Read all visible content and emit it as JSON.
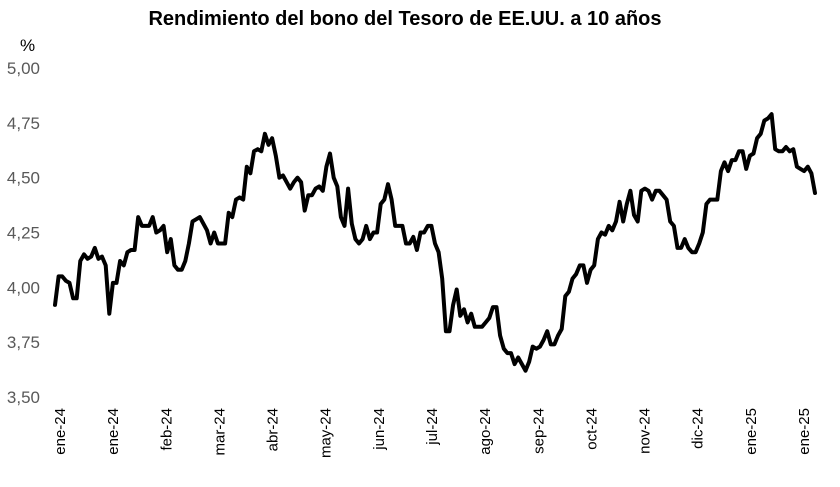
{
  "chart_data": {
    "type": "line",
    "title": "Rendimiento del bono del Tesoro de EE.UU. a 10 años",
    "ylabel": "%",
    "xlabel": "",
    "ylim": [
      3.5,
      5.0
    ],
    "yticks": [
      "3,50",
      "3,75",
      "4,00",
      "4,25",
      "4,50",
      "4,75",
      "5,00"
    ],
    "ytick_values": [
      3.5,
      3.75,
      4.0,
      4.25,
      4.5,
      4.75,
      5.0
    ],
    "xticks": [
      "ene-24",
      "ene-24",
      "feb-24",
      "mar-24",
      "abr-24",
      "may-24",
      "jun-24",
      "jul-24",
      "ago-24",
      "sep-24",
      "oct-24",
      "nov-24",
      "dic-24",
      "ene-25",
      "ene-25"
    ],
    "grid": false,
    "legend": "none",
    "line_color": "#000000",
    "series": [
      {
        "values": [
          3.92,
          4.05,
          4.05,
          4.03,
          4.02,
          3.95,
          3.95,
          4.12,
          4.15,
          4.13,
          4.14,
          4.18,
          4.13,
          4.14,
          4.1,
          3.88,
          4.02,
          4.02,
          4.12,
          4.1,
          4.16,
          4.17,
          4.17,
          4.32,
          4.28,
          4.28,
          4.28,
          4.32,
          4.25,
          4.26,
          4.28,
          4.16,
          4.22,
          4.1,
          4.08,
          4.08,
          4.12,
          4.2,
          4.3,
          4.31,
          4.32,
          4.29,
          4.26,
          4.2,
          4.25,
          4.2,
          4.2,
          4.2,
          4.34,
          4.32,
          4.4,
          4.41,
          4.4,
          4.55,
          4.52,
          4.62,
          4.63,
          4.62,
          4.7,
          4.65,
          4.68,
          4.6,
          4.5,
          4.51,
          4.48,
          4.45,
          4.48,
          4.5,
          4.48,
          4.35,
          4.42,
          4.42,
          4.45,
          4.46,
          4.44,
          4.55,
          4.61,
          4.5,
          4.46,
          4.32,
          4.28,
          4.45,
          4.29,
          4.22,
          4.2,
          4.22,
          4.28,
          4.22,
          4.25,
          4.25,
          4.38,
          4.4,
          4.47,
          4.4,
          4.28,
          4.28,
          4.28,
          4.2,
          4.2,
          4.23,
          4.17,
          4.25,
          4.25,
          4.28,
          4.28,
          4.2,
          4.16,
          4.04,
          3.8,
          3.8,
          3.92,
          3.99,
          3.87,
          3.9,
          3.84,
          3.88,
          3.82,
          3.82,
          3.82,
          3.84,
          3.86,
          3.91,
          3.91,
          3.78,
          3.72,
          3.7,
          3.7,
          3.65,
          3.68,
          3.65,
          3.62,
          3.66,
          3.73,
          3.72,
          3.73,
          3.76,
          3.8,
          3.74,
          3.74,
          3.78,
          3.81,
          3.96,
          3.98,
          4.04,
          4.06,
          4.1,
          4.1,
          4.02,
          4.08,
          4.1,
          4.22,
          4.25,
          4.24,
          4.28,
          4.26,
          4.3,
          4.39,
          4.3,
          4.38,
          4.44,
          4.33,
          4.3,
          4.44,
          4.45,
          4.44,
          4.4,
          4.44,
          4.44,
          4.42,
          4.4,
          4.3,
          4.28,
          4.18,
          4.18,
          4.22,
          4.18,
          4.16,
          4.16,
          4.2,
          4.25,
          4.38,
          4.4,
          4.4,
          4.4,
          4.53,
          4.57,
          4.53,
          4.58,
          4.58,
          4.62,
          4.62,
          4.54,
          4.6,
          4.61,
          4.68,
          4.7,
          4.76,
          4.77,
          4.79,
          4.63,
          4.62,
          4.62,
          4.64,
          4.62,
          4.63,
          4.55,
          4.54,
          4.53,
          4.55,
          4.52,
          4.43
        ]
      }
    ]
  }
}
